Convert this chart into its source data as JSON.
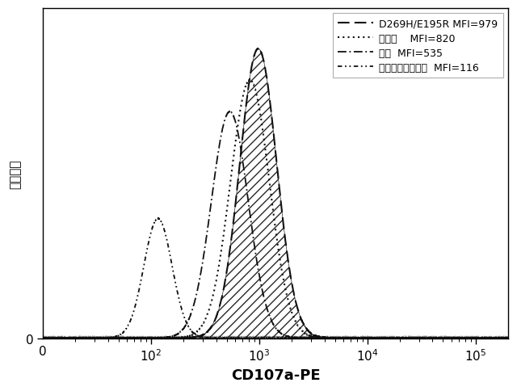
{
  "xlabel": "CD107a-PE",
  "ylabel": "カウント",
  "curves": [
    {
      "mfi_log10": 2.064,
      "peak": 0.38,
      "sigma": 0.13,
      "dashes": [
        3,
        2,
        1,
        2,
        1,
        2
      ],
      "lw": 1.3,
      "fill": false,
      "label": "アイソタイプ対照  MFI=116"
    },
    {
      "mfi_log10": 2.728,
      "peak": 0.72,
      "sigma": 0.17,
      "dashes": [
        6,
        2,
        1,
        2
      ],
      "lw": 1.3,
      "fill": false,
      "label": "疑似  MFI=535"
    },
    {
      "mfi_log10": 2.914,
      "peak": 0.82,
      "sigma": 0.18,
      "dashes": [
        1,
        2
      ],
      "lw": 1.5,
      "fill": false,
      "label": "野生型    MFI=820"
    },
    {
      "mfi_log10": 2.991,
      "peak": 0.92,
      "sigma": 0.17,
      "dashes": [
        7,
        3
      ],
      "lw": 1.5,
      "fill": true,
      "label": "D269H/E195R MFI=979"
    }
  ],
  "xlim": [
    1.0,
    5.3
  ],
  "ylim": [
    0,
    1.05
  ],
  "xtick_major": [
    2,
    3,
    4,
    5
  ],
  "xtick_labels": [
    "$10^2$",
    "$10^3$",
    "$10^4$",
    "$10^5$"
  ],
  "background_color": "#ffffff",
  "line_color": "#111111",
  "hatch_pattern": "///",
  "noise_amplitude": 0.008,
  "legend_fontsize": 9,
  "axis_fontsize": 11,
  "xlabel_fontsize": 13
}
